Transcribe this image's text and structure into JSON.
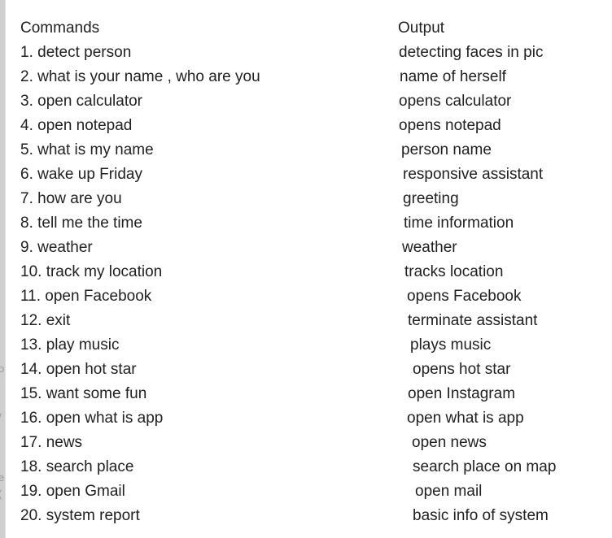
{
  "header": {
    "commands_label": "Commands",
    "output_label": "Output"
  },
  "rows": [
    {
      "command": "1. detect person",
      "output": "detecting faces in pic"
    },
    {
      "command": "2. what is your name , who are you",
      "output": "name of herself"
    },
    {
      "command": "3. open calculator",
      "output": "opens calculator"
    },
    {
      "command": "4. open notepad",
      "output": "opens notepad"
    },
    {
      "command": "5. what is my name",
      "output": "person name"
    },
    {
      "command": "6. wake up Friday",
      "output": "responsive assistant"
    },
    {
      "command": "7. how are you",
      "output": "greeting"
    },
    {
      "command": "8. tell me the time",
      "output": "time information"
    },
    {
      "command": "9. weather",
      "output": "weather"
    },
    {
      "command": "10. track my location",
      "output": "tracks location"
    },
    {
      "command": "11. open Facebook",
      "output": "opens Facebook"
    },
    {
      "command": "12. exit",
      "output": "terminate assistant"
    },
    {
      "command": "13. play music",
      "output": "plays music"
    },
    {
      "command": "14. open hot star",
      "output": "opens hot star"
    },
    {
      "command": "15. want some fun",
      "output": "open Instagram"
    },
    {
      "command": "16. open what is app",
      "output": "open what is app"
    },
    {
      "command": "17. news",
      "output": "open news"
    },
    {
      "command": "18. search place",
      "output": "search place on map"
    },
    {
      "command": "19. open Gmail",
      "output": "open mail"
    },
    {
      "command": "20. system report",
      "output": "basic info of system"
    }
  ],
  "side_fragments": [
    "o",
    "/",
    "e",
    "("
  ]
}
